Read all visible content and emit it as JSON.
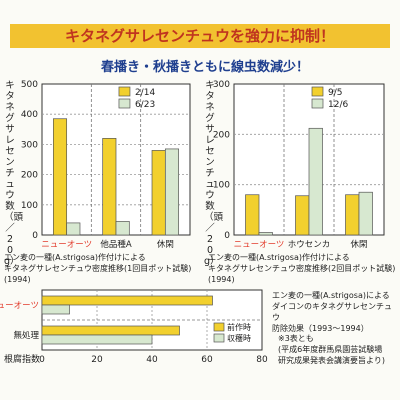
{
  "banner": "キタネグサレセンチュウを強力に抑制！",
  "subtitle": "春播き・秋播きともに線虫数減少！",
  "colors": {
    "yellow": "#f2d02e",
    "green": "#d7e8d0",
    "red": "#e23a2a",
    "text": "#222222"
  },
  "chart_data": [
    {
      "type": "bar",
      "ylabel": "キタネグサレセンチュウ数（頭／20g）",
      "ylim": [
        0,
        500
      ],
      "yticks": [
        "0",
        "100",
        "200",
        "300",
        "400",
        "500"
      ],
      "categories": [
        "ニューオーツ",
        "他品種A",
        "休閑"
      ],
      "series": [
        {
          "name": "2/14",
          "values": [
            385,
            320,
            280
          ]
        },
        {
          "name": "6/23",
          "values": [
            40,
            45,
            285
          ]
        }
      ],
      "caption": [
        "エン麦の一種(A.strigosa)作付けによる",
        "キタネグサレセンチュウ密度推移(1回目ポット試験)(1994)"
      ]
    },
    {
      "type": "bar",
      "ylabel": "キタネグサレセンチュウ数（頭／20g）",
      "ylim": [
        0,
        300
      ],
      "yticks": [
        "0",
        "100",
        "200",
        "300"
      ],
      "categories": [
        "ニューオーツ",
        "ホウセンカ",
        "休閑"
      ],
      "series": [
        {
          "name": "9/5",
          "values": [
            80,
            78,
            80
          ]
        },
        {
          "name": "12/6",
          "values": [
            5,
            212,
            85
          ]
        }
      ],
      "caption": [
        "エン麦の一種(A.strigosa)作付けによる",
        "キタネグサレセンチュウ密度推移(2回目ポット試験)(1994)"
      ]
    },
    {
      "type": "bar",
      "orientation": "horizontal",
      "xlabel": "根腐指数",
      "xlim": [
        0,
        80
      ],
      "xticks": [
        "0",
        "20",
        "40",
        "60",
        "80"
      ],
      "categories": [
        "ニューオーツ",
        "無処理"
      ],
      "series": [
        {
          "name": "前作時",
          "values": [
            62,
            50
          ]
        },
        {
          "name": "収穫時",
          "values": [
            10,
            40
          ]
        }
      ]
    }
  ],
  "right_note": [
    "エン麦の一種(A.strigosa)による",
    "ダイコンのキタネグサレセンチュウ",
    "防除効果（1993〜1994）"
  ],
  "source_note": [
    "※3表とも",
    "(平成6年度群馬県園芸試験場",
    "研究成果発表会講演要旨より)"
  ]
}
